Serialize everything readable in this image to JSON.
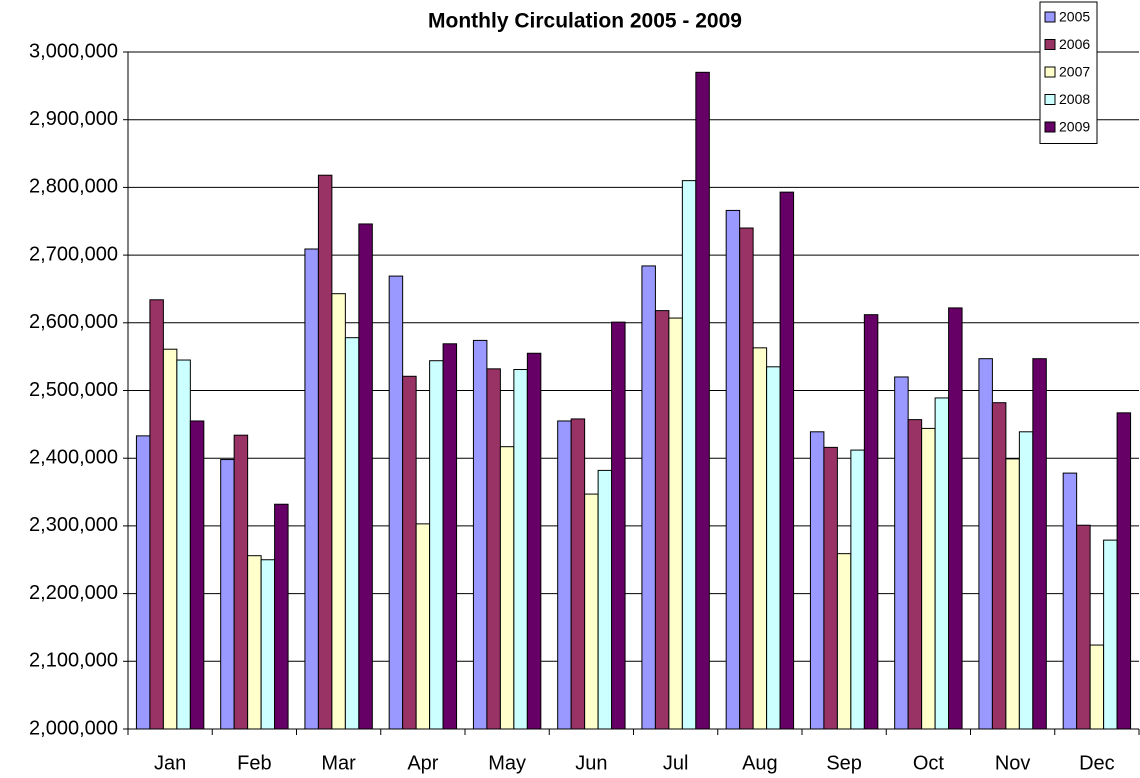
{
  "chart_data": {
    "type": "bar",
    "title": "Monthly Circulation 2005 - 2009",
    "categories": [
      "Jan",
      "Feb",
      "Mar",
      "Apr",
      "May",
      "Jun",
      "Jul",
      "Aug",
      "Sep",
      "Oct",
      "Nov",
      "Dec"
    ],
    "series": [
      {
        "name": "2005",
        "color": "#9999ff",
        "values": [
          2433000,
          2398000,
          2709000,
          2669000,
          2574000,
          2455000,
          2684000,
          2766000,
          2439000,
          2520000,
          2547000,
          2378000
        ]
      },
      {
        "name": "2006",
        "color": "#993366",
        "values": [
          2634000,
          2434000,
          2818000,
          2521000,
          2532000,
          2458000,
          2618000,
          2740000,
          2416000,
          2457000,
          2482000,
          2301000
        ]
      },
      {
        "name": "2007",
        "color": "#ffffcc",
        "values": [
          2561000,
          2256000,
          2643000,
          2303000,
          2417000,
          2347000,
          2607000,
          2563000,
          2259000,
          2444000,
          2399000,
          2124000
        ]
      },
      {
        "name": "2008",
        "color": "#ccffff",
        "values": [
          2545000,
          2250000,
          2578000,
          2544000,
          2531000,
          2382000,
          2810000,
          2535000,
          2412000,
          2489000,
          2439000,
          2279000
        ]
      },
      {
        "name": "2009",
        "color": "#660066",
        "values": [
          2455000,
          2332000,
          2746000,
          2569000,
          2555000,
          2601000,
          2970000,
          2793000,
          2612000,
          2622000,
          2547000,
          2467000
        ]
      }
    ],
    "ylim": [
      2000000,
      3000000
    ],
    "yticks": [
      {
        "value": 2000000,
        "label": "2,000,000"
      },
      {
        "value": 2100000,
        "label": "2,100,000"
      },
      {
        "value": 2200000,
        "label": "2,200,000"
      },
      {
        "value": 2300000,
        "label": "2,300,000"
      },
      {
        "value": 2400000,
        "label": "2,400,000"
      },
      {
        "value": 2500000,
        "label": "2,500,000"
      },
      {
        "value": 2600000,
        "label": "2,600,000"
      },
      {
        "value": 2700000,
        "label": "2,700,000"
      },
      {
        "value": 2800000,
        "label": "2,800,000"
      },
      {
        "value": 2900000,
        "label": "2,900,000"
      },
      {
        "value": 3000000,
        "label": "3,000,000"
      }
    ],
    "grid": true,
    "legend": "top-right"
  }
}
